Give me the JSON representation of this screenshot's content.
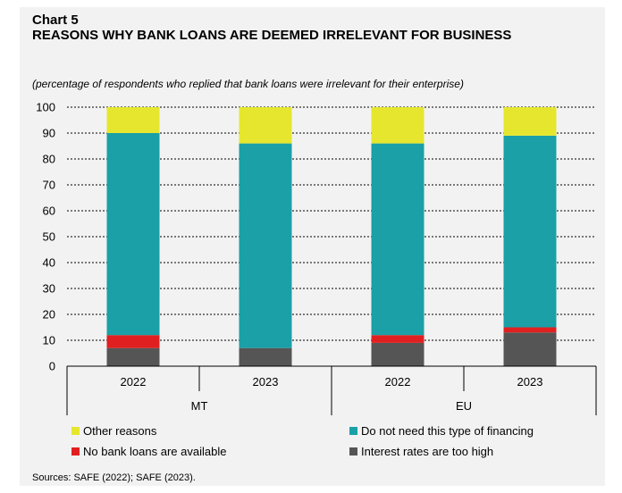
{
  "chart_label": "Chart 5",
  "title": "REASONS WHY BANK LOANS ARE DEEMED IRRELEVANT FOR BUSINESS",
  "subtitle": "(percentage of respondents who replied that bank loans were irrelevant for their enterprise)",
  "source": "Sources: SAFE (2022); SAFE (2023).",
  "chart_data": {
    "type": "bar",
    "stacked": true,
    "categories": [
      "2022",
      "2023",
      "2022",
      "2023"
    ],
    "groups": [
      {
        "label": "MT",
        "categories": [
          0,
          1
        ]
      },
      {
        "label": "EU",
        "categories": [
          2,
          3
        ]
      }
    ],
    "series": [
      {
        "name": "Interest rates are too high",
        "color": "#555555",
        "values": [
          7,
          7,
          9,
          13
        ]
      },
      {
        "name": "No bank loans are available",
        "color": "#e02020",
        "values": [
          5,
          0,
          3,
          2
        ]
      },
      {
        "name": "Do not need this type of financing",
        "color": "#1aa0a6",
        "values": [
          78,
          79,
          74,
          74
        ]
      },
      {
        "name": "Other reasons",
        "color": "#e6e62e",
        "values": [
          10,
          14,
          14,
          11
        ]
      }
    ],
    "ylim": [
      0,
      100
    ],
    "yticks": [
      0,
      10,
      20,
      30,
      40,
      50,
      60,
      70,
      80,
      90,
      100
    ],
    "grid": true,
    "legend_position": "bottom"
  }
}
